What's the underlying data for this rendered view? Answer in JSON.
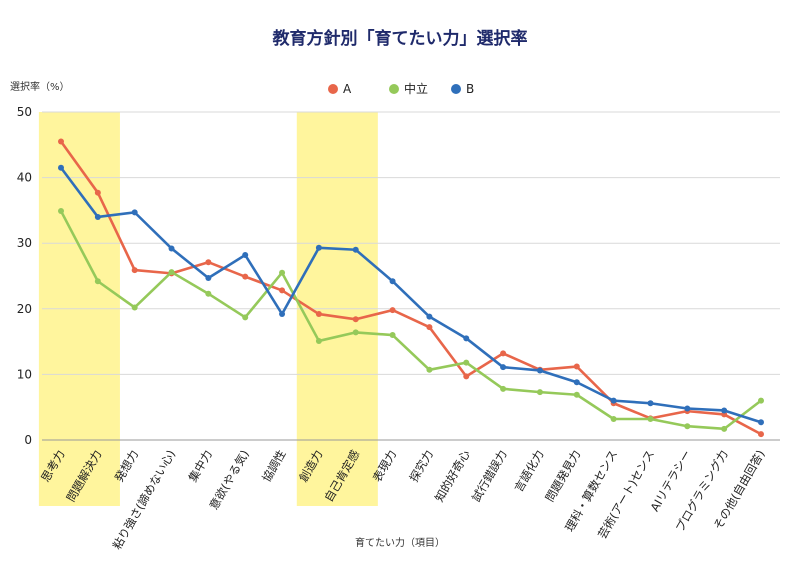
{
  "chart_data": {
    "type": "line",
    "title": "教育方針別「育てたい力」選択率",
    "ylabel": "選択率（%）",
    "xlabel": "育てたい力（項目）",
    "ylim": [
      0,
      50
    ],
    "yticks": [
      0,
      10,
      20,
      30,
      40,
      50
    ],
    "grid": true,
    "legend_position": "top",
    "categories": [
      "思考力",
      "問題解決力",
      "発想力",
      "粘り強さ(諦めない心)",
      "集中力",
      "意欲(やる気)",
      "協調性",
      "創造力",
      "自己肯定感",
      "表現力",
      "探究力",
      "知的好奇心",
      "試行錯誤力",
      "言語化力",
      "問題発見力",
      "理科・算数センス",
      "芸術(アート)センス",
      "AIリテラシー",
      "プログラミング力",
      "その他(自由回答)"
    ],
    "highlighted_categories": [
      "思考力",
      "問題解決力",
      "創造力",
      "自己肯定感"
    ],
    "highlight_color": "#fff59d",
    "series": [
      {
        "name": "A",
        "color": "#e8664a",
        "values": [
          45.5,
          37.7,
          25.9,
          25.4,
          27.1,
          24.9,
          22.8,
          19.2,
          18.4,
          19.8,
          17.2,
          9.7,
          13.2,
          10.7,
          11.2,
          5.6,
          3.3,
          4.4,
          3.9,
          0.9
        ]
      },
      {
        "name": "中立",
        "color": "#95c95a",
        "values": [
          34.9,
          24.2,
          20.2,
          25.6,
          22.3,
          18.7,
          25.5,
          15.1,
          16.4,
          16.0,
          10.7,
          11.8,
          7.8,
          7.3,
          6.9,
          3.2,
          3.2,
          2.1,
          1.7,
          6.0
        ]
      },
      {
        "name": "B",
        "color": "#2f6fba",
        "values": [
          41.5,
          34.0,
          34.7,
          29.2,
          24.7,
          28.2,
          19.2,
          29.3,
          29.0,
          24.2,
          18.8,
          15.5,
          11.1,
          10.6,
          8.8,
          6.0,
          5.6,
          4.8,
          4.5,
          2.7
        ]
      }
    ]
  }
}
